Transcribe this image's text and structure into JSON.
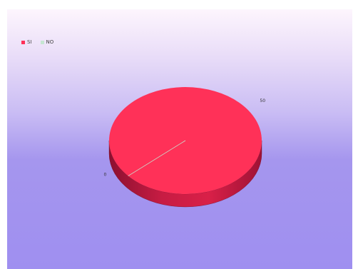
{
  "chart_data": {
    "type": "pie",
    "style": "3d",
    "categories": [
      "SI",
      "NO"
    ],
    "values": [
      50,
      0
    ],
    "colors": [
      "#ff3158",
      "#c6e6d2"
    ],
    "legend_position": "top-left",
    "data_labels": [
      "50",
      "0"
    ]
  }
}
